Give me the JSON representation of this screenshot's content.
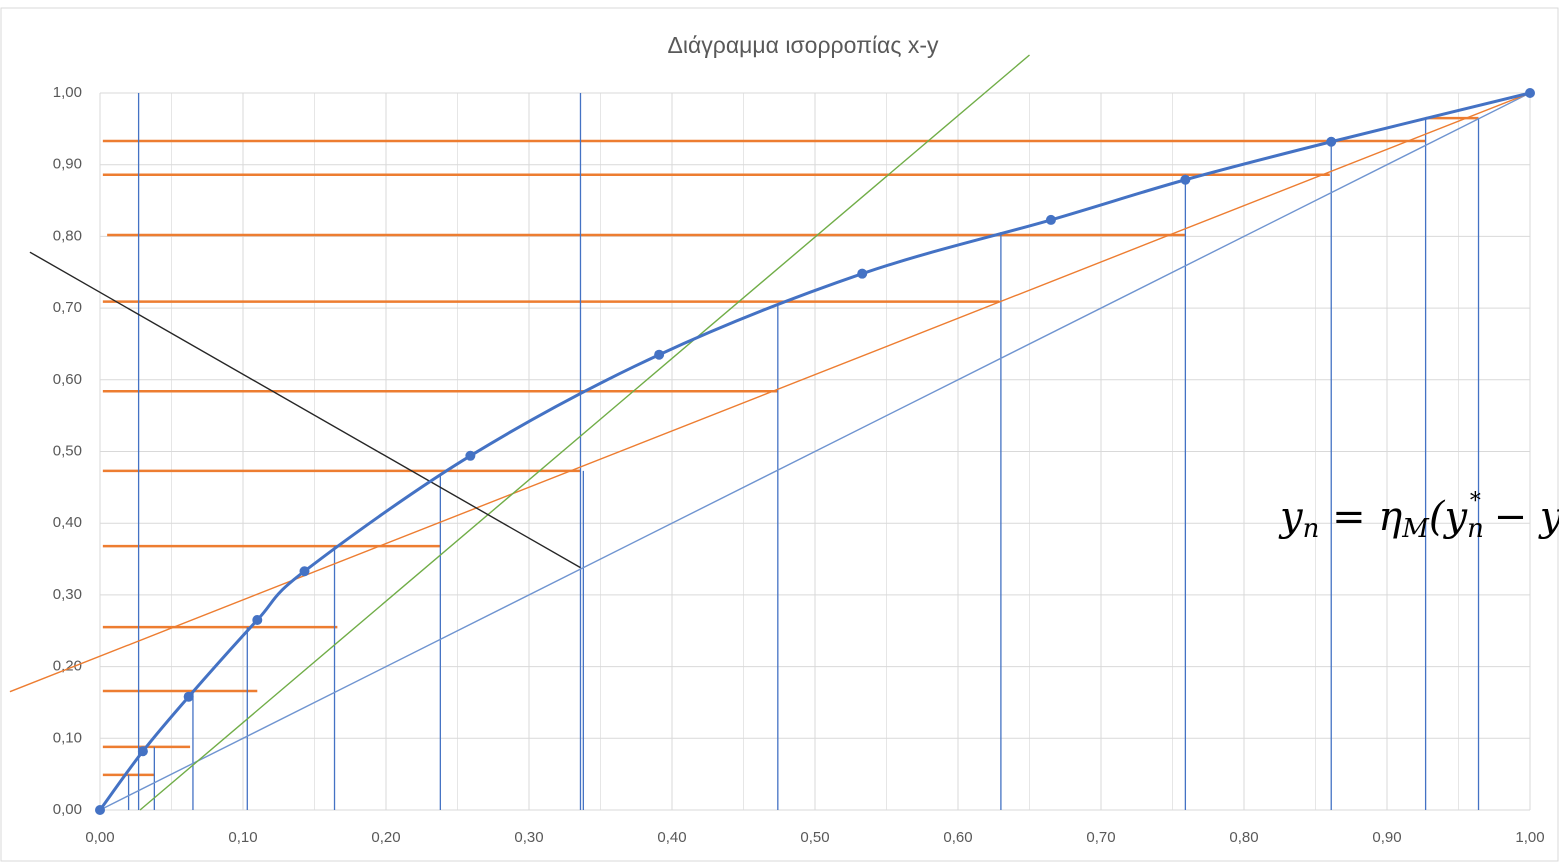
{
  "chart_data": {
    "type": "line",
    "title": "Διάγραμμα ισορροπίας x-y",
    "xlim": [
      0,
      1
    ],
    "ylim": [
      0,
      1
    ],
    "xticks": [
      {
        "value": 0,
        "label": "0,00"
      },
      {
        "value": 0.1,
        "label": "0,10"
      },
      {
        "value": 0.2,
        "label": "0,20"
      },
      {
        "value": 0.3,
        "label": "0,30"
      },
      {
        "value": 0.4,
        "label": "0,40"
      },
      {
        "value": 0.5,
        "label": "0,50"
      },
      {
        "value": 0.6,
        "label": "0,60"
      },
      {
        "value": 0.7,
        "label": "0,70"
      },
      {
        "value": 0.8,
        "label": "0,80"
      },
      {
        "value": 0.9,
        "label": "0,90"
      },
      {
        "value": 1,
        "label": "1,00"
      }
    ],
    "yticks": [
      {
        "value": 0,
        "label": "0,00"
      },
      {
        "value": 0.1,
        "label": "0,10"
      },
      {
        "value": 0.2,
        "label": "0,20"
      },
      {
        "value": 0.3,
        "label": "0,30"
      },
      {
        "value": 0.4,
        "label": "0,40"
      },
      {
        "value": 0.5,
        "label": "0,50"
      },
      {
        "value": 0.6,
        "label": "0,60"
      },
      {
        "value": 0.7,
        "label": "0,70"
      },
      {
        "value": 0.8,
        "label": "0,80"
      },
      {
        "value": 0.9,
        "label": "0,90"
      },
      {
        "value": 1,
        "label": "1,00"
      }
    ],
    "xgrid_minor": [
      0.05,
      0.15,
      0.25,
      0.35,
      0.45,
      0.55,
      0.65,
      0.75,
      0.85,
      0.95
    ],
    "grid": true,
    "series": [
      {
        "color": "#4472c4",
        "x": [
          0,
          0.03,
          0.062,
          0.11,
          0.143,
          0.259,
          0.391,
          0.533,
          0.665,
          0.759,
          0.861,
          1
        ],
        "values": [
          0,
          0.082,
          0.158,
          0.265,
          0.333,
          0.494,
          0.635,
          0.748,
          0.823,
          0.879,
          0.932,
          1
        ]
      }
    ],
    "lines": [
      {
        "color": "#6f94d0",
        "x": [
          0,
          1
        ],
        "values": [
          0,
          1
        ]
      },
      {
        "color": "#ed7d31",
        "x": [
          -0.063,
          1
        ],
        "values": [
          0.165,
          1
        ]
      },
      {
        "color": "#70ad47",
        "x": [
          0.028,
          0.65
        ],
        "values": [
          0,
          1.053
        ]
      },
      {
        "color": "#262626",
        "x": [
          -0.049,
          0.336
        ],
        "values": [
          0.778,
          0.338
        ]
      }
    ],
    "step_color_h": "#ed7d31",
    "step_color_v": "#4472c4",
    "horizontals": [
      [
        0.002,
        0.927,
        0.933
      ],
      [
        0.002,
        0.86,
        0.886
      ],
      [
        0.005,
        0.759,
        0.802
      ],
      [
        0.002,
        0.629,
        0.709
      ],
      [
        0.002,
        0.474,
        0.584
      ],
      [
        0.002,
        0.336,
        0.473
      ],
      [
        0.002,
        0.238,
        0.368
      ],
      [
        0.002,
        0.166,
        0.255
      ],
      [
        0.002,
        0.11,
        0.166
      ],
      [
        0.002,
        0.063,
        0.088
      ],
      [
        0.002,
        0.038,
        0.049
      ],
      [
        0.927,
        0.964,
        0.965
      ]
    ],
    "verticals": [
      [
        0.027,
        0,
        1
      ],
      [
        0.336,
        0,
        1
      ],
      [
        0.964,
        0,
        0.965
      ],
      [
        0.927,
        0,
        0.965
      ],
      [
        0.861,
        0,
        0.933
      ],
      [
        0.759,
        0,
        0.886
      ],
      [
        0.63,
        0,
        0.806
      ],
      [
        0.474,
        0,
        0.704
      ],
      [
        0.338,
        0,
        0.473
      ],
      [
        0.238,
        0,
        0.469
      ],
      [
        0.164,
        0,
        0.368
      ],
      [
        0.103,
        0,
        0.255
      ],
      [
        0.065,
        0,
        0.166
      ],
      [
        0.038,
        0,
        0.088
      ],
      [
        0.02,
        0,
        0.049
      ]
    ],
    "annotation": [
      "y",
      "n",
      " = η",
      "M",
      "(y",
      "n",
      "*",
      " − y"
    ],
    "annotation_roles": [
      "base",
      "sub",
      "base",
      "sub",
      "base",
      "sub",
      "sup",
      "base"
    ]
  }
}
